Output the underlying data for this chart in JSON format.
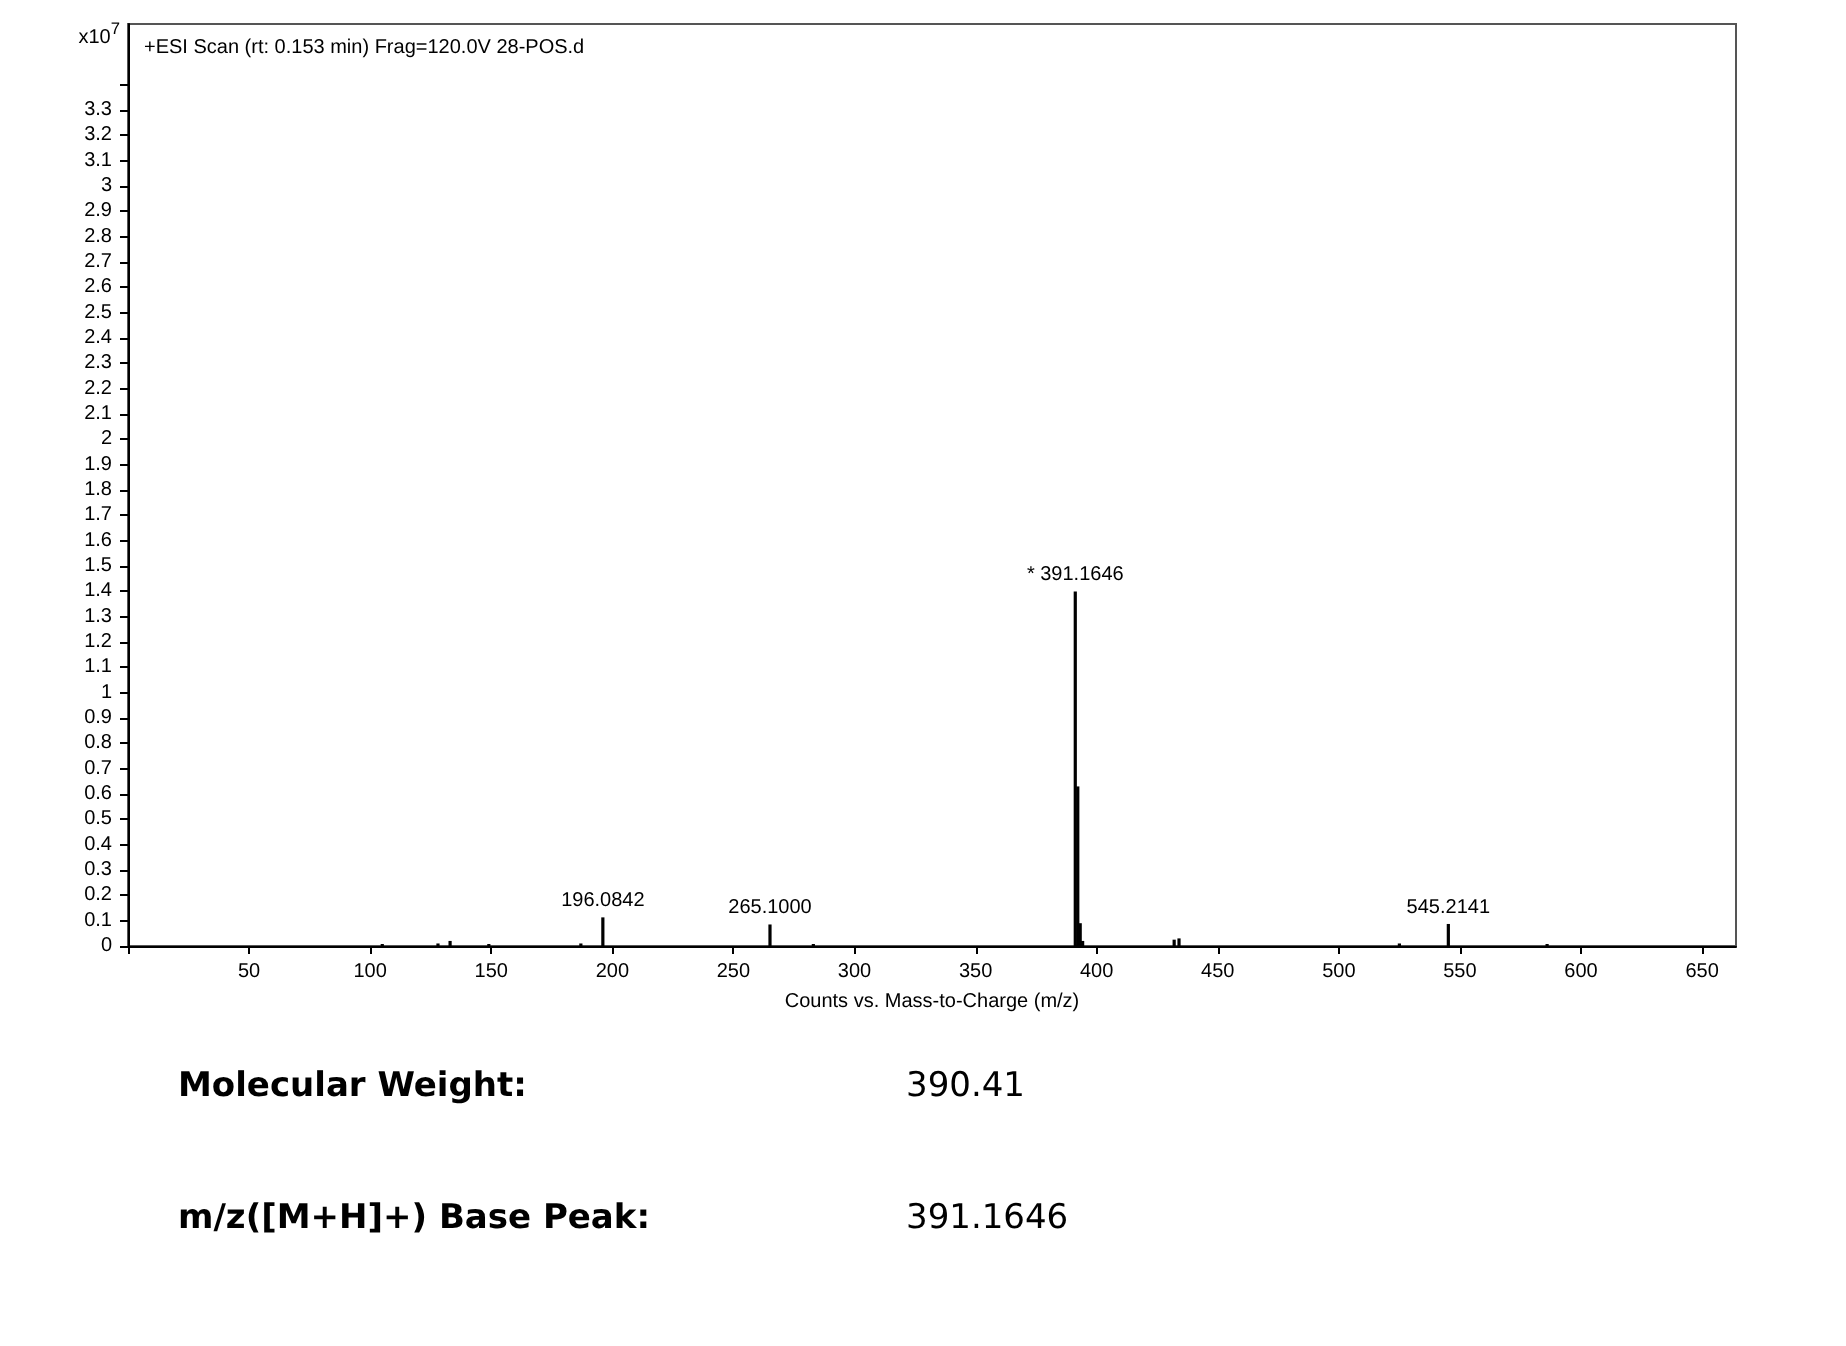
{
  "chart_data": {
    "type": "bar",
    "title": "+ESI Scan (rt: 0.153 min) Frag=120.0V 28-POS.d",
    "xlabel": "Counts vs. Mass-to-Charge (m/z)",
    "ylabel": "x10$^{7}$",
    "x": [
      105,
      128,
      133,
      149,
      187,
      196.0842,
      265.1,
      283,
      391.1646,
      392.2,
      393.2,
      394.2,
      432,
      434,
      525,
      545.2141,
      586
    ],
    "values": [
      0.008,
      0.01,
      0.02,
      0.008,
      0.01,
      0.113,
      0.085,
      0.008,
      1.4,
      0.63,
      0.09,
      0.02,
      0.025,
      0.03,
      0.01,
      0.087,
      0.008
    ],
    "color": "#000000",
    "xlim": [
      0,
      664
    ],
    "ylim": [
      0,
      3.64
    ],
    "xticks": [
      {
        "value": 0,
        "label": null
      },
      50,
      100,
      150,
      200,
      250,
      300,
      350,
      400,
      450,
      500,
      550,
      600,
      650
    ],
    "yticks": [
      0,
      0.1,
      0.2,
      0.3,
      0.4,
      0.5,
      0.6,
      0.7,
      0.8,
      0.9,
      1,
      1.1,
      1.2,
      1.3,
      1.4,
      1.5,
      1.6,
      1.7,
      1.8,
      1.9,
      2,
      2.1,
      2.2,
      2.3,
      2.4,
      2.5,
      2.6,
      2.7,
      2.8,
      2.9,
      3,
      3.1,
      3.2,
      3.3,
      {
        "value": 3.4,
        "label": null
      }
    ],
    "grid": false,
    "annotations": [
      {
        "text": "196.0842",
        "x": 196.0842,
        "y": 0.113
      },
      {
        "text": "265.1000",
        "x": 265.1,
        "y": 0.085
      },
      {
        "text": "* 391.1646",
        "x": 391.1646,
        "y": 1.4
      },
      {
        "text": "545.2141",
        "x": 545.2141,
        "y": 0.087
      },
      "Molecular Weight:",
      "390.41",
      "m/z([M+H]+) Base Peak:",
      "391.1646"
    ]
  }
}
